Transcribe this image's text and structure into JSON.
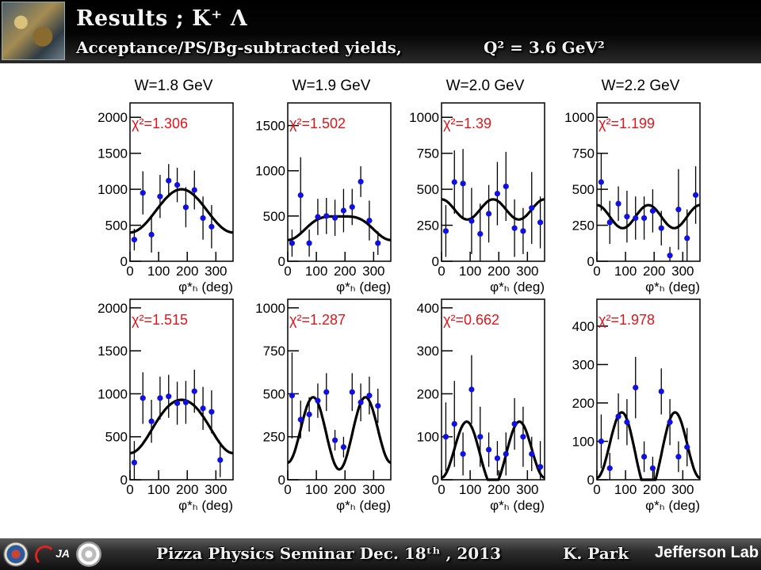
{
  "header": {
    "title": "Results ; K⁺ Λ",
    "subtitle": "Acceptance/PS/Bg-subtracted yields,",
    "q2": "Q² = 3.6 GeV²"
  },
  "footer": {
    "seminar": "Pizza Physics  Seminar  Dec. 18ᵗʰ , 2013",
    "author": "K. Park",
    "lab": "Jefferson Lab"
  },
  "colors": {
    "points": "#1010e0",
    "chi2": "#e0161b",
    "curve": "#000000"
  },
  "chart_data": [
    {
      "type": "scatter",
      "title": "W=1.8 GeV",
      "xlabel": "φ*ₕ (deg)",
      "ylabel": "",
      "xlim": [
        0,
        360
      ],
      "ylim": [
        0,
        2200
      ],
      "xticks": [
        0,
        100,
        200,
        300
      ],
      "yticks": [
        0,
        500,
        1000,
        1500,
        2000
      ],
      "chi2": "χ²=1.306",
      "points": [
        [
          15,
          300,
          150
        ],
        [
          45,
          950,
          300
        ],
        [
          75,
          370,
          250
        ],
        [
          105,
          900,
          300
        ],
        [
          135,
          1120,
          230
        ],
        [
          165,
          1060,
          240
        ],
        [
          195,
          750,
          280
        ],
        [
          225,
          990,
          270
        ],
        [
          255,
          600,
          300
        ],
        [
          285,
          480,
          300
        ]
      ],
      "fit": {
        "A": 700,
        "B": -300,
        "C": 0
      }
    },
    {
      "type": "scatter",
      "title": "W=1.9 GeV",
      "xlabel": "φ*ₕ (deg)",
      "ylabel": "",
      "xlim": [
        0,
        360
      ],
      "ylim": [
        0,
        1750
      ],
      "xticks": [
        0,
        100,
        200,
        300
      ],
      "yticks": [
        0,
        500,
        1000,
        1500
      ],
      "chi2": "χ²=1.502",
      "points": [
        [
          15,
          200,
          150
        ],
        [
          45,
          730,
          420
        ],
        [
          75,
          200,
          150
        ],
        [
          105,
          490,
          200
        ],
        [
          135,
          500,
          200
        ],
        [
          165,
          480,
          200
        ],
        [
          195,
          560,
          240
        ],
        [
          225,
          600,
          200
        ],
        [
          255,
          880,
          170
        ],
        [
          285,
          450,
          220
        ],
        [
          315,
          200,
          130
        ]
      ],
      "fit": {
        "A": 400,
        "B": -130,
        "C": -35
      }
    },
    {
      "type": "scatter",
      "title": "W=2.0 GeV",
      "xlabel": "φ*ₕ (deg)",
      "ylabel": "",
      "xlim": [
        0,
        360
      ],
      "ylim": [
        0,
        1100
      ],
      "xticks": [
        0,
        100,
        200,
        300
      ],
      "yticks": [
        0,
        250,
        500,
        750,
        1000
      ],
      "chi2": "χ²=1.39",
      "points": [
        [
          15,
          210,
          180
        ],
        [
          45,
          550,
          220
        ],
        [
          75,
          540,
          240
        ],
        [
          105,
          280,
          230
        ],
        [
          135,
          190,
          210
        ],
        [
          165,
          330,
          200
        ],
        [
          195,
          470,
          220
        ],
        [
          225,
          520,
          240
        ],
        [
          255,
          230,
          200
        ],
        [
          285,
          210,
          160
        ],
        [
          315,
          370,
          250
        ],
        [
          345,
          270,
          180
        ]
      ],
      "fit": {
        "A": 360,
        "B": 0,
        "C": 70
      }
    },
    {
      "type": "scatter",
      "title": "W=2.2 GeV",
      "xlabel": "φ*ₕ (deg)",
      "ylabel": "",
      "xlim": [
        0,
        360
      ],
      "ylim": [
        0,
        1100
      ],
      "xticks": [
        0,
        100,
        200,
        300
      ],
      "yticks": [
        0,
        250,
        500,
        750,
        1000
      ],
      "chi2": "χ²=1.199",
      "points": [
        [
          15,
          550,
          200
        ],
        [
          45,
          270,
          150
        ],
        [
          75,
          400,
          120
        ],
        [
          105,
          310,
          180
        ],
        [
          135,
          300,
          150
        ],
        [
          165,
          300,
          150
        ],
        [
          195,
          350,
          150
        ],
        [
          225,
          230,
          120
        ],
        [
          255,
          40,
          60
        ],
        [
          285,
          360,
          280
        ],
        [
          315,
          160,
          200
        ],
        [
          345,
          460,
          200
        ]
      ],
      "fit": {
        "A": 310,
        "B": 0,
        "C": 80
      }
    },
    {
      "type": "scatter",
      "title": "",
      "xlabel": "φ*ₕ (deg)",
      "ylabel": "",
      "xlim": [
        0,
        360
      ],
      "ylim": [
        0,
        2100
      ],
      "xticks": [
        0,
        100,
        200,
        300
      ],
      "yticks": [
        0,
        500,
        1000,
        1500,
        2000
      ],
      "chi2": "χ²=1.515",
      "points": [
        [
          15,
          200,
          250
        ],
        [
          45,
          950,
          300
        ],
        [
          75,
          680,
          250
        ],
        [
          105,
          950,
          250
        ],
        [
          135,
          970,
          250
        ],
        [
          165,
          890,
          250
        ],
        [
          195,
          900,
          250
        ],
        [
          225,
          1030,
          250
        ],
        [
          255,
          830,
          250
        ],
        [
          285,
          790,
          250
        ],
        [
          315,
          230,
          200
        ]
      ],
      "fit": {
        "A": 640,
        "B": -310,
        "C": -20
      }
    },
    {
      "type": "scatter",
      "title": "",
      "xlabel": "φ*ₕ (deg)",
      "ylabel": "",
      "xlim": [
        0,
        360
      ],
      "ylim": [
        0,
        1050
      ],
      "xticks": [
        0,
        100,
        200,
        300
      ],
      "yticks": [
        0,
        250,
        500,
        750,
        1000
      ],
      "chi2": "χ²=1.287",
      "points": [
        [
          15,
          490,
          250
        ],
        [
          45,
          350,
          110
        ],
        [
          75,
          380,
          100
        ],
        [
          105,
          460,
          100
        ],
        [
          135,
          510,
          110
        ],
        [
          165,
          230,
          60
        ],
        [
          195,
          190,
          60
        ],
        [
          225,
          510,
          110
        ],
        [
          255,
          450,
          110
        ],
        [
          285,
          490,
          110
        ],
        [
          315,
          430,
          100
        ]
      ],
      "fit": {
        "A": 280,
        "B": 20,
        "C": -200
      }
    },
    {
      "type": "scatter",
      "title": "",
      "xlabel": "φ*ₕ (deg)",
      "ylabel": "",
      "xlim": [
        0,
        360
      ],
      "ylim": [
        0,
        420
      ],
      "xticks": [
        0,
        100,
        200,
        300
      ],
      "yticks": [
        0,
        100,
        200,
        300,
        400
      ],
      "chi2": "χ²=0.662",
      "points": [
        [
          15,
          100,
          80
        ],
        [
          45,
          130,
          100
        ],
        [
          75,
          60,
          50
        ],
        [
          105,
          210,
          80
        ],
        [
          135,
          100,
          70
        ],
        [
          165,
          70,
          40
        ],
        [
          195,
          50,
          40
        ],
        [
          225,
          60,
          50
        ],
        [
          255,
          130,
          60
        ],
        [
          285,
          100,
          70
        ],
        [
          315,
          60,
          40
        ],
        [
          345,
          30,
          60
        ]
      ],
      "fit": {
        "A": 65,
        "B": 10,
        "C": -70
      }
    },
    {
      "type": "scatter",
      "title": "",
      "xlabel": "φ*ₕ (deg)",
      "ylabel": "",
      "xlim": [
        0,
        360
      ],
      "ylim": [
        0,
        470
      ],
      "xticks": [
        0,
        100,
        200,
        300
      ],
      "yticks": [
        0,
        100,
        200,
        300,
        400
      ],
      "chi2": "χ²=1.978",
      "points": [
        [
          15,
          100,
          70
        ],
        [
          45,
          30,
          40
        ],
        [
          75,
          165,
          60
        ],
        [
          105,
          150,
          60
        ],
        [
          135,
          240,
          80
        ],
        [
          165,
          60,
          40
        ],
        [
          195,
          30,
          30
        ],
        [
          225,
          230,
          60
        ],
        [
          255,
          150,
          60
        ],
        [
          285,
          60,
          40
        ],
        [
          315,
          85,
          50
        ]
      ],
      "fit": {
        "A": 80,
        "B": 20,
        "C": -95
      }
    }
  ]
}
